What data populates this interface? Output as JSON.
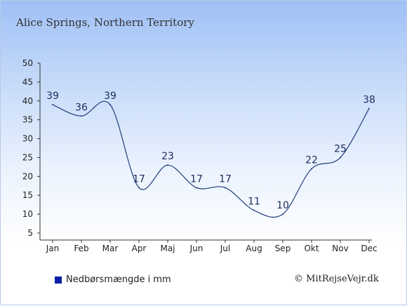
{
  "title": "Alice Springs, Northern Territory",
  "legend_label": "Nedbørsmængde i mm",
  "credit": "© MitRejseVejr.dk",
  "colors": {
    "line": "#1f3d7a",
    "label": "#1c2c5e",
    "swatch": "#0a1ea8",
    "axis": "#333333"
  },
  "chart_data": {
    "type": "line",
    "categories": [
      "Jan",
      "Feb",
      "Mar",
      "Apr",
      "Maj",
      "Jun",
      "Jul",
      "Aug",
      "Sep",
      "Okt",
      "Nov",
      "Dec"
    ],
    "series": [
      {
        "name": "Nedbørsmængde i mm",
        "values": [
          39,
          36,
          39,
          17,
          23,
          17,
          17,
          11,
          10,
          22,
          25,
          38
        ]
      }
    ],
    "ylim": [
      5,
      50
    ],
    "yticks": [
      5,
      10,
      15,
      20,
      25,
      30,
      35,
      40,
      45,
      50
    ],
    "grid": false
  }
}
